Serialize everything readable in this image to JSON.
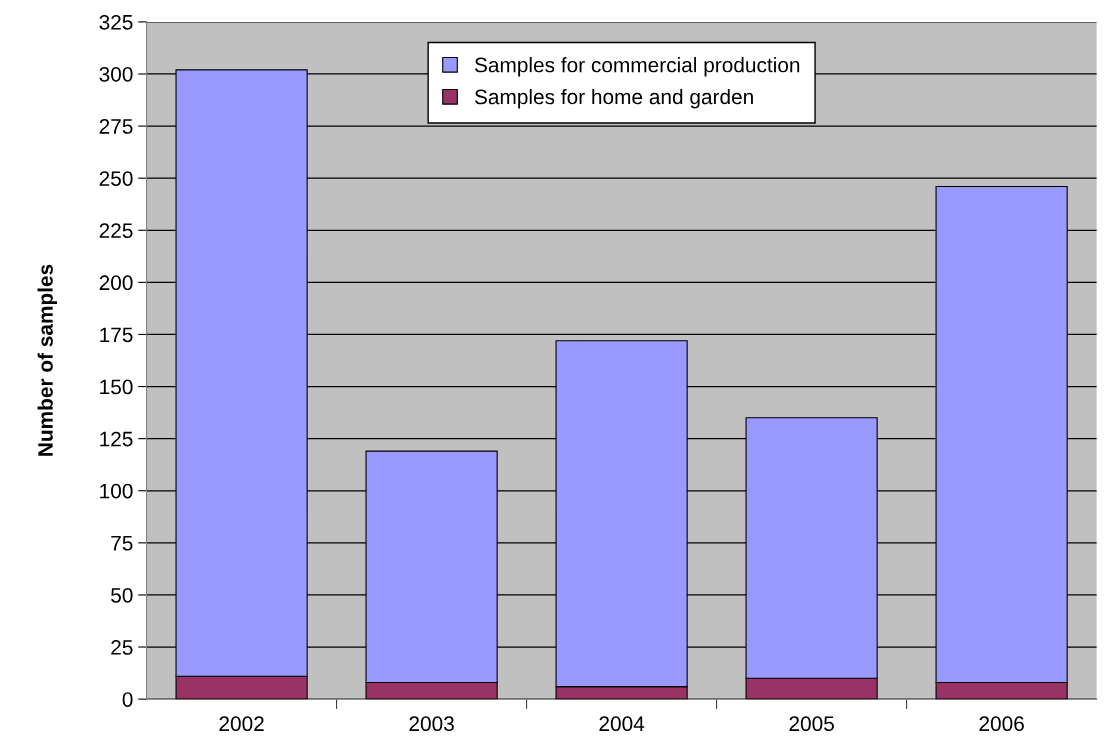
{
  "chart_data": {
    "type": "bar",
    "stacked": true,
    "ylabel": "Number of samples",
    "categories": [
      "2002",
      "2003",
      "2004",
      "2005",
      "2006"
    ],
    "series": [
      {
        "name": "Samples for home and garden",
        "color": "#993366",
        "values": [
          11,
          8,
          6,
          10,
          8
        ]
      },
      {
        "name": "Samples for commercial production",
        "color": "#9999ff",
        "values": [
          291,
          111,
          166,
          125,
          238
        ]
      }
    ],
    "ylim": [
      0,
      325
    ],
    "yticks": [
      0,
      25,
      50,
      75,
      100,
      125,
      150,
      175,
      200,
      225,
      250,
      275,
      300,
      325
    ],
    "grid": "y",
    "legend": "top"
  }
}
